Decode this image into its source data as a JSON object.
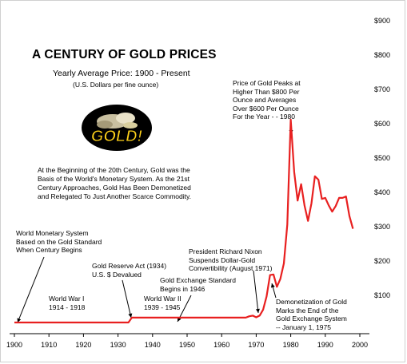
{
  "title": "A CENTURY OF GOLD PRICES",
  "subtitle": "Yearly Average Price: 1900 - Present",
  "units_note": "(U.S. Dollars per fine ounce)",
  "logo": {
    "text": "GOLD!",
    "icon": "gold-nuggets-logo"
  },
  "intro_text": "At the Beginning of the 20th Century, Gold was the\nBasis of the World's Monetary System.  As the 21st\nCentury Approaches, Gold Has Been Demonetized\nand Relegated To Just Another Scarce Commodity.",
  "annotations": {
    "world_monetary": "World Monetary System\nBased on the Gold Standard\nWhen Century Begins",
    "gold_reserve_act": "Gold Reserve Act (1934)\n   U.S. $ Devalued",
    "ww1": "World War I\n1914 - 1918",
    "ww2": "World War II\n1939 - 1945",
    "gold_exchange": "Gold Exchange Standard\n     Begins in 1946",
    "nixon": "President Richard Nixon\nSuspends Dollar-Gold\nConvertibility (August 1971)",
    "demonetization": "Demonetization of Gold\nMarks the End of the\nGold Exchange System\n-- January 1, 1975",
    "peak_1980": "Price of Gold Peaks at\nHigher Than $800 Per\nOunce and Averages\nOver $600 Per Ounce\nFor the Year - - 1980"
  },
  "colors": {
    "series": "#e82020",
    "text": "#000000",
    "background": "#ffffff",
    "frame": "#d0d0d0"
  },
  "chart_data": {
    "type": "line",
    "title": "A CENTURY OF GOLD PRICES",
    "subtitle": "Yearly Average Price: 1900 - Present",
    "xlabel": "",
    "ylabel": "",
    "xlim": [
      1900,
      2000
    ],
    "ylim": [
      0,
      900
    ],
    "x_ticks": [
      1900,
      1910,
      1920,
      1930,
      1940,
      1950,
      1960,
      1970,
      1980,
      1990,
      2000
    ],
    "y_ticks": [
      100,
      200,
      300,
      400,
      500,
      600,
      700,
      800,
      900
    ],
    "y_tick_labels": [
      "$100",
      "$200",
      "$300",
      "$400",
      "$500",
      "$600",
      "$700",
      "$800",
      "$900"
    ],
    "grid": false,
    "series": [
      {
        "x": [
          1900,
          1933,
          1934,
          1946,
          1967,
          1968,
          1969,
          1970,
          1971,
          1972,
          1973,
          1974,
          1975,
          1976,
          1977,
          1978,
          1979,
          1980,
          1981,
          1982,
          1983,
          1984,
          1985,
          1986,
          1987,
          1988,
          1989,
          1990,
          1991,
          1992,
          1993,
          1994,
          1995,
          1996,
          1997,
          1998
        ],
        "y": [
          21,
          21,
          35,
          35,
          35,
          39,
          41,
          36,
          41,
          58,
          97,
          159,
          161,
          125,
          148,
          193,
          306,
          612,
          460,
          376,
          424,
          361,
          317,
          368,
          447,
          437,
          381,
          384,
          362,
          344,
          360,
          384,
          384,
          388,
          331,
          294
        ]
      }
    ]
  }
}
